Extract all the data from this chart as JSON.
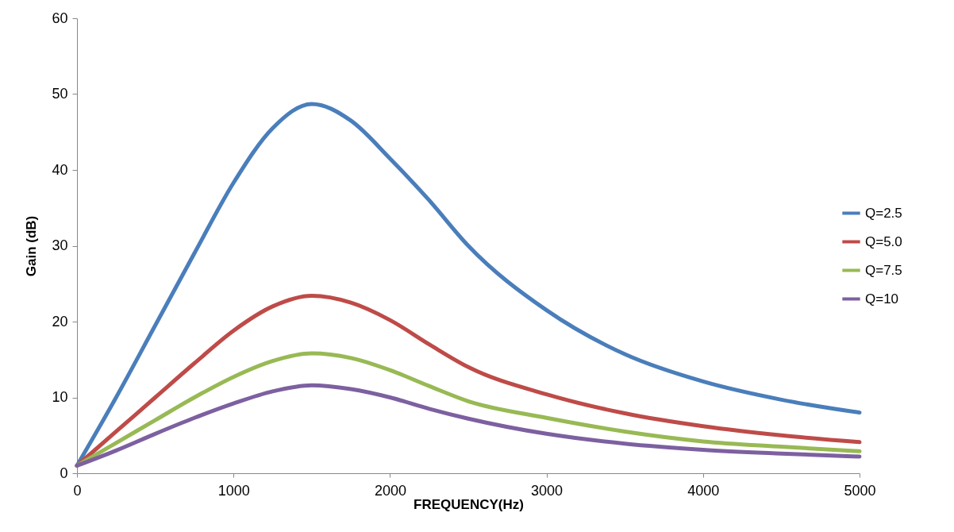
{
  "chart_data": {
    "type": "line",
    "xlabel": "FREQUENCY(Hz)",
    "ylabel": "Gain (dB)",
    "x": [
      0,
      250,
      500,
      750,
      1000,
      1250,
      1500,
      1750,
      2000,
      2250,
      2500,
      3000,
      3500,
      4000,
      4500,
      5000
    ],
    "series": [
      {
        "name": "Q=2.5",
        "color": "#4a7ebb",
        "values": [
          1,
          10,
          19.5,
          29,
          38.3,
          45.5,
          48.7,
          46.5,
          41.5,
          36,
          30,
          21.5,
          15.7,
          12.1,
          9.7,
          8
        ]
      },
      {
        "name": "Q=5.0",
        "color": "#be4b48",
        "values": [
          1,
          5.5,
          10,
          14.5,
          18.8,
          22,
          23.4,
          22.5,
          20.2,
          17,
          14,
          10.4,
          7.9,
          6.2,
          5,
          4.1
        ]
      },
      {
        "name": "Q=7.5",
        "color": "#98b954",
        "values": [
          1,
          4,
          7,
          10,
          12.7,
          14.8,
          15.8,
          15.2,
          13.6,
          11.5,
          9.5,
          7.3,
          5.5,
          4.2,
          3.5,
          2.9
        ]
      },
      {
        "name": "Q=10",
        "color": "#7d60a0",
        "values": [
          1,
          3,
          5.2,
          7.3,
          9.2,
          10.8,
          11.6,
          11.1,
          10,
          8.5,
          7.2,
          5.2,
          3.9,
          3.1,
          2.6,
          2.2
        ]
      }
    ],
    "xlim": [
      0,
      5000
    ],
    "xticks": [
      0,
      1000,
      2000,
      3000,
      4000,
      5000
    ],
    "ylim": [
      0,
      60
    ],
    "yticks": [
      0,
      10,
      20,
      30,
      40,
      50,
      60
    ],
    "grid": false,
    "legend": "right",
    "marker": "none",
    "line_style": "solid"
  }
}
